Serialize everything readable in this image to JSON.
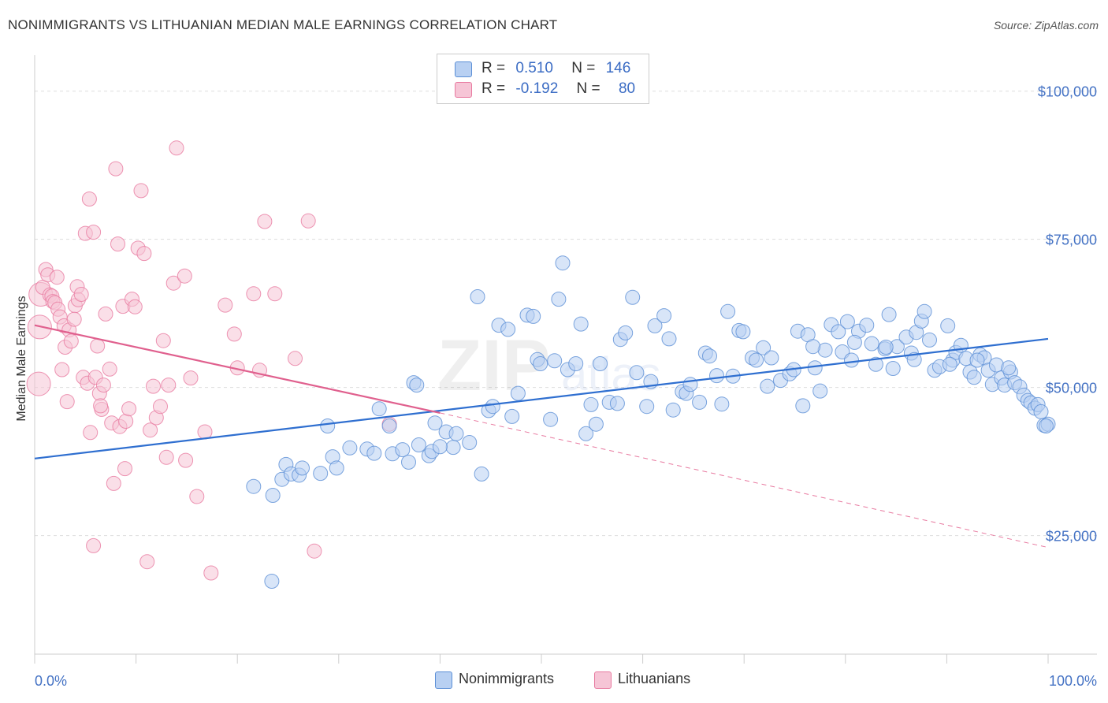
{
  "title": "NONIMMIGRANTS VS LITHUANIAN MEDIAN MALE EARNINGS CORRELATION CHART",
  "source": "Source: ZipAtlas.com",
  "legend": {
    "rows": [
      {
        "r_label": "R =",
        "r_value": "0.510",
        "n_label": "N =",
        "n_value": "146"
      },
      {
        "r_label": "R =",
        "r_value": "-0.192",
        "n_label": "N =",
        "n_value": "80"
      }
    ]
  },
  "bottom_legend": {
    "items": [
      "Nonimmigrants",
      "Lithuanians"
    ]
  },
  "colors": {
    "blue": "#5b8fd6",
    "blue_fill": "#b8d0f2",
    "pink": "#e87aa0",
    "pink_fill": "#f6c5d6",
    "axis_text": "#4472c4"
  },
  "chart_data": {
    "type": "scatter",
    "xlabel": "",
    "ylabel": "Median Male Earnings",
    "x_tick_labels": [
      "0.0%",
      "100.0%"
    ],
    "y_tick_labels": [
      "$25,000",
      "$50,000",
      "$75,000",
      "$100,000"
    ],
    "xlim": [
      0,
      100
    ],
    "ylim": [
      5000,
      105000
    ],
    "grid": true,
    "legend_position": "top-center",
    "series": [
      {
        "name": "Nonimmigrants",
        "color": "#5b8fd6",
        "trend": {
          "x": [
            0,
            100
          ],
          "y": [
            38000,
            58200
          ]
        },
        "points": [
          [
            21.6,
            33300
          ],
          [
            23.5,
            31800
          ],
          [
            24.4,
            34500
          ],
          [
            24.8,
            37000
          ],
          [
            25.3,
            35400
          ],
          [
            26.1,
            35200
          ],
          [
            26.4,
            36400
          ],
          [
            28.2,
            35500
          ],
          [
            28.9,
            43500
          ],
          [
            29.4,
            38300
          ],
          [
            29.8,
            36400
          ],
          [
            31.1,
            39800
          ],
          [
            32.8,
            39600
          ],
          [
            33.5,
            38900
          ],
          [
            34.0,
            46400
          ],
          [
            35.0,
            43500
          ],
          [
            35.3,
            38800
          ],
          [
            36.3,
            39500
          ],
          [
            37.4,
            50800
          ],
          [
            37.7,
            50400
          ],
          [
            37.9,
            40300
          ],
          [
            38.9,
            38500
          ],
          [
            39.2,
            39200
          ],
          [
            39.5,
            44000
          ],
          [
            40.6,
            42500
          ],
          [
            41.3,
            39900
          ],
          [
            41.6,
            42200
          ],
          [
            42.9,
            40700
          ],
          [
            43.7,
            65300
          ],
          [
            44.1,
            35400
          ],
          [
            44.8,
            46100
          ],
          [
            45.2,
            46800
          ],
          [
            45.8,
            60500
          ],
          [
            46.7,
            59800
          ],
          [
            47.1,
            45100
          ],
          [
            47.7,
            49000
          ],
          [
            48.6,
            62200
          ],
          [
            49.2,
            62000
          ],
          [
            49.6,
            54700
          ],
          [
            49.9,
            54000
          ],
          [
            50.9,
            44600
          ],
          [
            51.3,
            54500
          ],
          [
            51.7,
            64900
          ],
          [
            52.1,
            71000
          ],
          [
            52.6,
            53000
          ],
          [
            53.4,
            54000
          ],
          [
            53.9,
            60700
          ],
          [
            54.4,
            42200
          ],
          [
            54.9,
            47100
          ],
          [
            55.4,
            43800
          ],
          [
            55.8,
            54000
          ],
          [
            56.7,
            47500
          ],
          [
            57.5,
            47300
          ],
          [
            57.8,
            58100
          ],
          [
            58.3,
            59200
          ],
          [
            59.0,
            65200
          ],
          [
            59.4,
            52500
          ],
          [
            60.4,
            46800
          ],
          [
            60.8,
            51000
          ],
          [
            61.2,
            60400
          ],
          [
            62.1,
            62100
          ],
          [
            62.6,
            58200
          ],
          [
            63.0,
            46200
          ],
          [
            63.9,
            49300
          ],
          [
            64.3,
            49000
          ],
          [
            64.7,
            50500
          ],
          [
            65.6,
            47500
          ],
          [
            66.2,
            55800
          ],
          [
            66.6,
            55300
          ],
          [
            67.3,
            52000
          ],
          [
            67.8,
            47200
          ],
          [
            68.4,
            62800
          ],
          [
            68.9,
            51900
          ],
          [
            69.5,
            59600
          ],
          [
            69.9,
            59400
          ],
          [
            70.8,
            55000
          ],
          [
            71.2,
            54600
          ],
          [
            71.9,
            56700
          ],
          [
            72.3,
            50200
          ],
          [
            72.7,
            55000
          ],
          [
            73.6,
            51200
          ],
          [
            74.5,
            52300
          ],
          [
            75.3,
            59500
          ],
          [
            75.8,
            46900
          ],
          [
            76.3,
            58900
          ],
          [
            77.0,
            53300
          ],
          [
            77.5,
            49400
          ],
          [
            78.0,
            56300
          ],
          [
            78.6,
            60600
          ],
          [
            79.3,
            59400
          ],
          [
            79.7,
            56000
          ],
          [
            80.2,
            61100
          ],
          [
            80.6,
            54600
          ],
          [
            81.3,
            59500
          ],
          [
            82.1,
            60500
          ],
          [
            82.6,
            57400
          ],
          [
            83.0,
            53900
          ],
          [
            83.9,
            56500
          ],
          [
            84.3,
            62300
          ],
          [
            84.7,
            53200
          ],
          [
            85.1,
            56900
          ],
          [
            86.0,
            58500
          ],
          [
            86.5,
            55800
          ],
          [
            87.0,
            59300
          ],
          [
            87.5,
            61200
          ],
          [
            87.8,
            62800
          ],
          [
            88.3,
            58000
          ],
          [
            88.8,
            52900
          ],
          [
            89.3,
            53500
          ],
          [
            90.1,
            60400
          ],
          [
            90.6,
            54600
          ],
          [
            90.9,
            55900
          ],
          [
            91.4,
            57100
          ],
          [
            91.9,
            54900
          ],
          [
            92.3,
            52600
          ],
          [
            92.7,
            51700
          ],
          [
            93.3,
            55500
          ],
          [
            93.7,
            55000
          ],
          [
            94.1,
            52900
          ],
          [
            94.5,
            50500
          ],
          [
            94.9,
            53800
          ],
          [
            95.4,
            51600
          ],
          [
            95.7,
            50400
          ],
          [
            96.3,
            52600
          ],
          [
            96.7,
            50800
          ],
          [
            97.2,
            50100
          ],
          [
            97.6,
            48700
          ],
          [
            98.0,
            47800
          ],
          [
            98.3,
            47400
          ],
          [
            98.7,
            46500
          ],
          [
            99.0,
            47100
          ],
          [
            99.3,
            45900
          ],
          [
            99.6,
            43600
          ],
          [
            100.0,
            43800
          ],
          [
            99.8,
            43500
          ],
          [
            96.1,
            53300
          ],
          [
            93.0,
            54600
          ],
          [
            90.3,
            53900
          ],
          [
            86.8,
            54700
          ],
          [
            84.0,
            56800
          ],
          [
            80.9,
            57600
          ],
          [
            76.8,
            56900
          ],
          [
            74.9,
            53000
          ],
          [
            23.4,
            17300
          ],
          [
            40.0,
            40000
          ],
          [
            36.9,
            37400
          ]
        ]
      },
      {
        "name": "Lithuanians",
        "color": "#e87aa0",
        "trend": {
          "x": [
            0,
            40
          ],
          "y": [
            60500,
            45700
          ]
        },
        "trend_dashed": {
          "x": [
            40,
            100
          ],
          "y": [
            45700,
            23000
          ]
        },
        "points": [
          [
            0.4,
            50600
          ],
          [
            0.5,
            60200
          ],
          [
            0.6,
            65700
          ],
          [
            0.8,
            66900
          ],
          [
            1.1,
            69900
          ],
          [
            1.3,
            69000
          ],
          [
            1.5,
            65600
          ],
          [
            1.7,
            65400
          ],
          [
            1.8,
            64500
          ],
          [
            2.0,
            64300
          ],
          [
            2.2,
            68600
          ],
          [
            2.3,
            63200
          ],
          [
            2.5,
            61900
          ],
          [
            2.7,
            53000
          ],
          [
            2.9,
            60400
          ],
          [
            3.0,
            56800
          ],
          [
            3.2,
            47600
          ],
          [
            3.4,
            59700
          ],
          [
            3.6,
            57800
          ],
          [
            4.0,
            63800
          ],
          [
            4.2,
            67000
          ],
          [
            4.3,
            64800
          ],
          [
            4.6,
            65700
          ],
          [
            4.8,
            51700
          ],
          [
            5.0,
            76000
          ],
          [
            5.2,
            50700
          ],
          [
            5.4,
            81800
          ],
          [
            5.5,
            42400
          ],
          [
            5.8,
            76200
          ],
          [
            6.0,
            51700
          ],
          [
            6.2,
            57000
          ],
          [
            6.4,
            49000
          ],
          [
            6.6,
            46300
          ],
          [
            6.8,
            50400
          ],
          [
            7.0,
            62400
          ],
          [
            7.4,
            53100
          ],
          [
            7.6,
            44000
          ],
          [
            7.8,
            33800
          ],
          [
            8.0,
            86900
          ],
          [
            8.2,
            74200
          ],
          [
            8.4,
            43400
          ],
          [
            8.7,
            63700
          ],
          [
            9.0,
            44300
          ],
          [
            9.3,
            46400
          ],
          [
            9.6,
            64900
          ],
          [
            9.9,
            63600
          ],
          [
            10.2,
            73500
          ],
          [
            10.5,
            83200
          ],
          [
            10.8,
            72600
          ],
          [
            11.1,
            20600
          ],
          [
            11.4,
            42800
          ],
          [
            11.7,
            50200
          ],
          [
            12.0,
            44900
          ],
          [
            12.4,
            46800
          ],
          [
            12.7,
            57900
          ],
          [
            13.0,
            38200
          ],
          [
            13.2,
            50400
          ],
          [
            13.7,
            67600
          ],
          [
            14.0,
            90400
          ],
          [
            14.8,
            68800
          ],
          [
            14.9,
            37700
          ],
          [
            15.4,
            51600
          ],
          [
            16.0,
            31600
          ],
          [
            16.8,
            42500
          ],
          [
            17.4,
            18700
          ],
          [
            18.8,
            63900
          ],
          [
            19.7,
            59000
          ],
          [
            20.0,
            53300
          ],
          [
            21.6,
            65800
          ],
          [
            22.2,
            52900
          ],
          [
            22.7,
            78000
          ],
          [
            23.7,
            65800
          ],
          [
            25.7,
            54900
          ],
          [
            27.0,
            78100
          ],
          [
            27.6,
            22400
          ],
          [
            35.0,
            43800
          ],
          [
            5.8,
            23300
          ],
          [
            8.9,
            36300
          ],
          [
            6.5,
            46900
          ],
          [
            3.9,
            61500
          ]
        ]
      }
    ]
  }
}
